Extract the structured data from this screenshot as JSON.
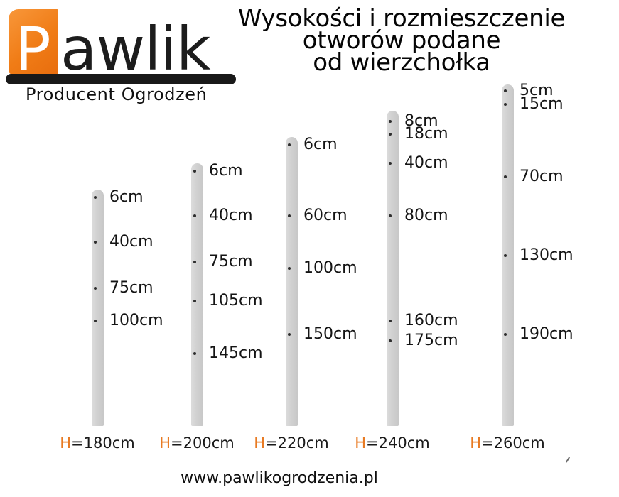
{
  "logo": {
    "letter": "P",
    "rest": "awlik",
    "tagline": "Producent Ogrodzeń"
  },
  "title": {
    "line1": "Wysokości i rozmieszczenie",
    "line2": "otworów podane",
    "line3": "od wierzchołka"
  },
  "posts": [
    {
      "height_cm": 180,
      "height_label_prefix": "H",
      "height_label_rest": "=180cm",
      "holes": [
        {
          "cm": 6,
          "label": "6cm"
        },
        {
          "cm": 40,
          "label": "40cm"
        },
        {
          "cm": 75,
          "label": "75cm"
        },
        {
          "cm": 100,
          "label": "100cm"
        }
      ]
    },
    {
      "height_cm": 200,
      "height_label_prefix": "H",
      "height_label_rest": "=200cm",
      "holes": [
        {
          "cm": 6,
          "label": "6cm"
        },
        {
          "cm": 40,
          "label": "40cm"
        },
        {
          "cm": 75,
          "label": "75cm"
        },
        {
          "cm": 105,
          "label": "105cm"
        },
        {
          "cm": 145,
          "label": "145cm"
        }
      ]
    },
    {
      "height_cm": 220,
      "height_label_prefix": "H",
      "height_label_rest": "=220cm",
      "holes": [
        {
          "cm": 6,
          "label": "6cm"
        },
        {
          "cm": 60,
          "label": "60cm"
        },
        {
          "cm": 100,
          "label": "100cm"
        },
        {
          "cm": 150,
          "label": "150cm"
        }
      ]
    },
    {
      "height_cm": 240,
      "height_label_prefix": "H",
      "height_label_rest": "=240cm",
      "holes": [
        {
          "cm": 8,
          "label": "8cm"
        },
        {
          "cm": 18,
          "label": "18cm"
        },
        {
          "cm": 40,
          "label": "40cm"
        },
        {
          "cm": 80,
          "label": "80cm"
        },
        {
          "cm": 160,
          "label": "160cm"
        },
        {
          "cm": 175,
          "label": "175cm"
        }
      ]
    },
    {
      "height_cm": 260,
      "height_label_prefix": "H",
      "height_label_rest": "=260cm",
      "holes": [
        {
          "cm": 5,
          "label": "5cm"
        },
        {
          "cm": 15,
          "label": "15cm"
        },
        {
          "cm": 70,
          "label": "70cm"
        },
        {
          "cm": 130,
          "label": "130cm"
        },
        {
          "cm": 190,
          "label": "190cm"
        }
      ]
    }
  ],
  "footer": {
    "website": "www.pawlikogrodzenia.pl"
  },
  "colors": {
    "accent_orange": "#e87a22",
    "logo_orange": "#f07c16",
    "post_gray": "#d2d2d2",
    "text_dark": "#151515",
    "bar_black": "#191919"
  }
}
